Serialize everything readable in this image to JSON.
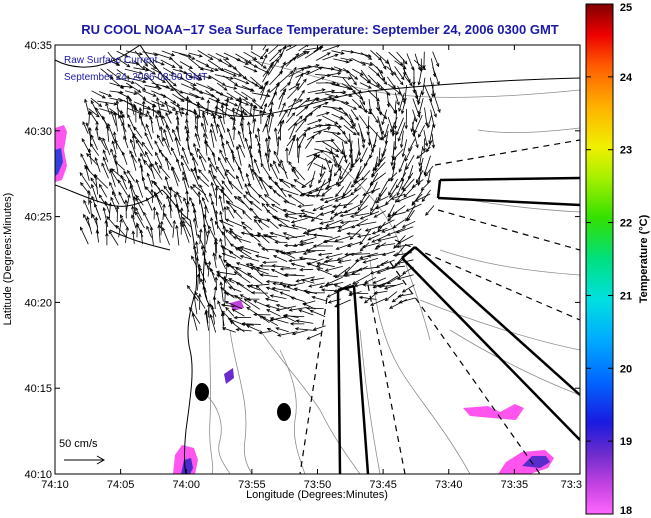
{
  "title": "RU COOL  NOAA−17  Sea Surface Temperature:  September 24, 2006 0300 GMT",
  "subtitle_lines": [
    "Raw Surface Current",
    "September 24, 2006 03:00 GMT"
  ],
  "x_axis": {
    "label": "Longitude (Degrees:Minutes)",
    "ticks": [
      "74:10",
      "74:05",
      "74:00",
      "73:55",
      "73:50",
      "73:45",
      "73:40",
      "73:35",
      "73:3"
    ]
  },
  "y_axis": {
    "label": "Latitude (Degrees:Minutes)",
    "ticks": [
      "40:35",
      "40:30",
      "40:25",
      "40:20",
      "40:15",
      "40:10"
    ]
  },
  "colorbar": {
    "label": "Temperature (°C)",
    "ticks": [
      "25",
      "24",
      "23",
      "22",
      "21",
      "20",
      "19",
      "18"
    ],
    "min": 18,
    "max": 25
  },
  "scale_label": "50 cm/s",
  "colors": {
    "title": "#1a1aa6",
    "coast": "#000000",
    "contour": "#8c8c8c",
    "vectors": "#000000"
  }
}
